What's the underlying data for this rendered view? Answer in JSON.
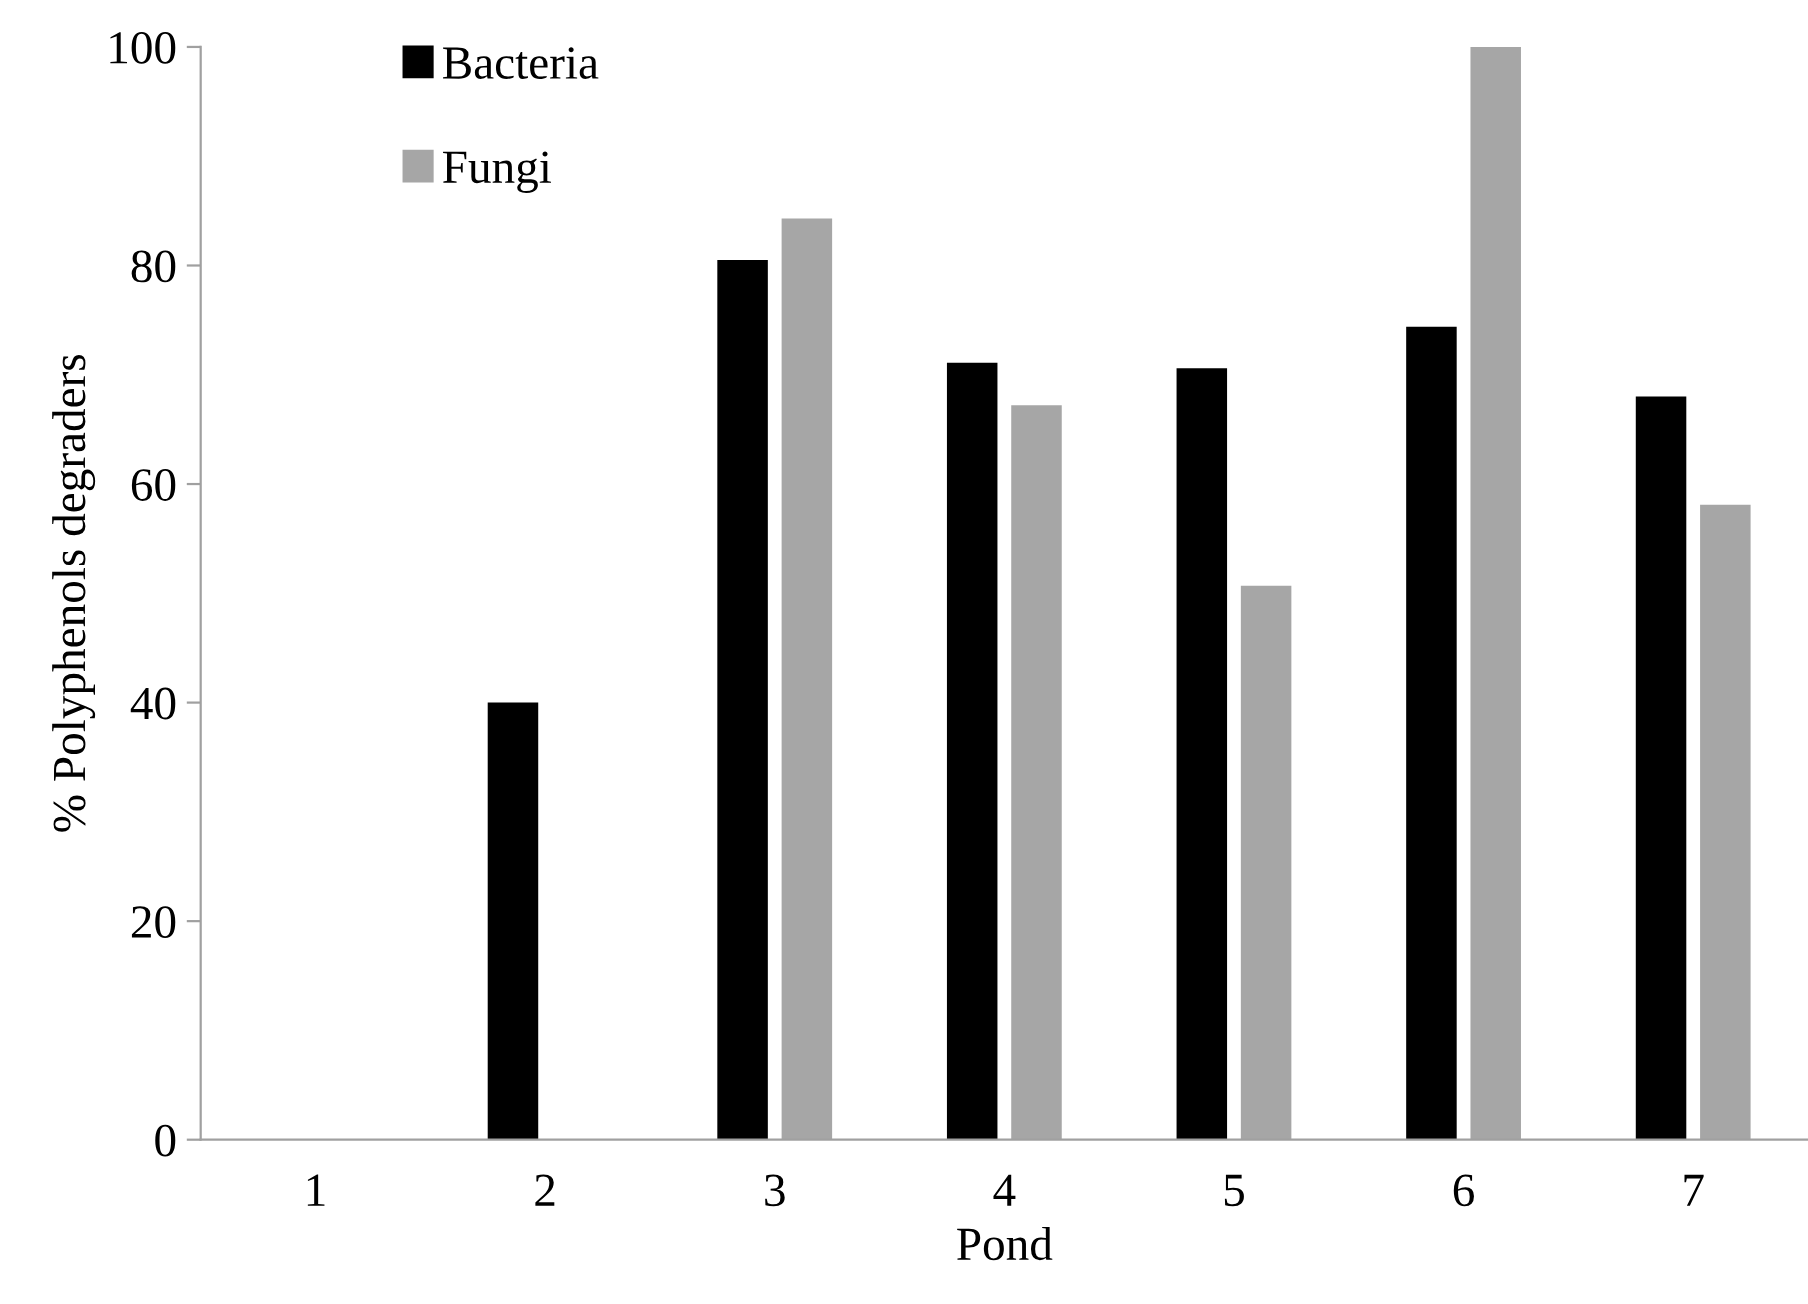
{
  "chart_data": {
    "type": "bar",
    "xlabel": "Pond",
    "ylabel": "% Polyphenols degraders",
    "categories": [
      "1",
      "2",
      "3",
      "4",
      "5",
      "6",
      "7"
    ],
    "series": [
      {
        "name": "Bacteria",
        "color": "#000000",
        "values": [
          0,
          40,
          80.5,
          71.1,
          70.6,
          74.4,
          68.0
        ]
      },
      {
        "name": "Fungi",
        "color": "#a6a6a6",
        "values": [
          0,
          0,
          84.3,
          67.2,
          50.7,
          100,
          58.1
        ]
      }
    ],
    "ylim": [
      0,
      100
    ],
    "yticks": [
      0,
      20,
      40,
      60,
      80,
      100
    ],
    "grid": false,
    "legend": "top left"
  }
}
